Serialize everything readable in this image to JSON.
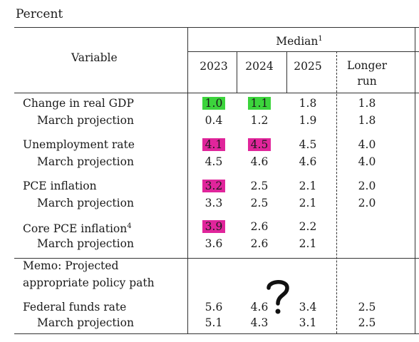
{
  "unit_label": "Percent",
  "header": {
    "variable": "Variable",
    "median": "Median",
    "median_footnote": "1",
    "years": [
      "2023",
      "2024",
      "2025"
    ],
    "longer_run_line1": "Longer",
    "longer_run_line2": "run"
  },
  "rows": [
    {
      "label": "Change in real GDP",
      "footnote": "",
      "values": [
        "1.0",
        "1.1",
        "1.8",
        "1.8"
      ],
      "highlights": [
        "green",
        "green",
        "",
        ""
      ]
    },
    {
      "label": "March projection",
      "footnote": "",
      "values": [
        "0.4",
        "1.2",
        "1.9",
        "1.8"
      ],
      "highlights": [
        "",
        "",
        "",
        ""
      ]
    },
    {
      "label": "Unemployment rate",
      "footnote": "",
      "values": [
        "4.1",
        "4.5",
        "4.5",
        "4.0"
      ],
      "highlights": [
        "pink",
        "pink",
        "",
        ""
      ]
    },
    {
      "label": "March projection",
      "footnote": "",
      "values": [
        "4.5",
        "4.6",
        "4.6",
        "4.0"
      ],
      "highlights": [
        "",
        "",
        "",
        ""
      ]
    },
    {
      "label": "PCE inflation",
      "footnote": "",
      "values": [
        "3.2",
        "2.5",
        "2.1",
        "2.0"
      ],
      "highlights": [
        "pink",
        "",
        "",
        ""
      ]
    },
    {
      "label": "March projection",
      "footnote": "",
      "values": [
        "3.3",
        "2.5",
        "2.1",
        "2.0"
      ],
      "highlights": [
        "",
        "",
        "",
        ""
      ]
    },
    {
      "label": "Core PCE inflation",
      "footnote": "4",
      "values": [
        "3.9",
        "2.6",
        "2.2",
        ""
      ],
      "highlights": [
        "pink",
        "",
        "",
        ""
      ]
    },
    {
      "label": "March projection",
      "footnote": "",
      "values": [
        "3.6",
        "2.6",
        "2.1",
        ""
      ],
      "highlights": [
        "",
        "",
        "",
        ""
      ]
    }
  ],
  "memo": {
    "line1": "Memo: Projected",
    "line2": "appropriate policy path"
  },
  "policy_rows": [
    {
      "label": "Federal funds rate",
      "values": [
        "5.6",
        "4.6",
        "3.4",
        "2.5"
      ]
    },
    {
      "label": "March projection",
      "values": [
        "5.1",
        "4.3",
        "3.1",
        "2.5"
      ]
    }
  ],
  "colors": {
    "highlight_green": "#3cd43c",
    "highlight_pink": "#e0259b"
  },
  "annotation_icon": "question-mark-icon"
}
